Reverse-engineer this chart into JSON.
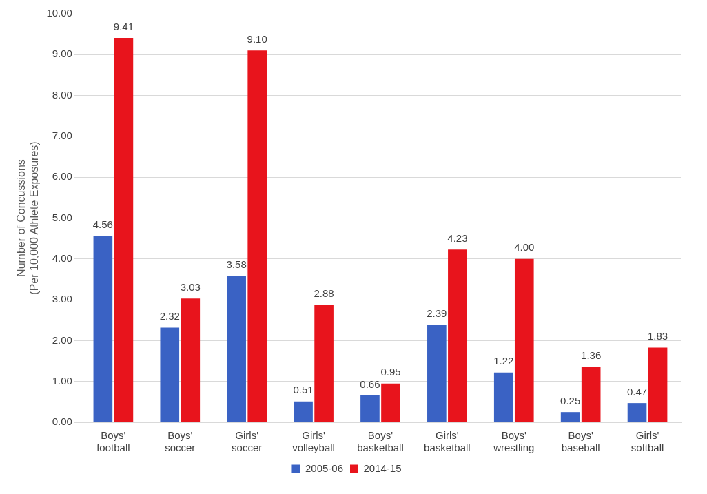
{
  "chart_data": {
    "type": "bar",
    "ylabel": "Number of Concussions\n(Per 10,000 Athlete Exposures)",
    "categories": [
      "Boys' football",
      "Boys' soccer",
      "Girls' soccer",
      "Girls' volleyball",
      "Boys' basketball",
      "Girls' basketball",
      "Boys' wrestling",
      "Boys' baseball",
      "Girls' softball"
    ],
    "series": [
      {
        "name": "2005-06",
        "color": "#3a62c4",
        "values": [
          4.56,
          2.32,
          3.58,
          0.51,
          0.66,
          2.39,
          1.22,
          0.25,
          0.47
        ],
        "value_labels": [
          "4.56",
          "2.32",
          "3.58",
          "0.51",
          "0.66",
          "2.39",
          "1.22",
          "0.25",
          "0.47"
        ]
      },
      {
        "name": "2014-15",
        "color": "#e8141c",
        "values": [
          9.41,
          3.03,
          9.1,
          2.88,
          0.95,
          4.23,
          4,
          1.36,
          1.83
        ],
        "value_labels": [
          "9.41",
          "3.03",
          "9.10",
          "2.88",
          "0.95",
          "4.23",
          "4.00",
          "1.36",
          "1.83"
        ]
      }
    ],
    "ylim": [
      0,
      10
    ],
    "yticks": [
      {
        "value": 0,
        "label": "0.00"
      },
      {
        "value": 1,
        "label": "1.00"
      },
      {
        "value": 2,
        "label": "2.00"
      },
      {
        "value": 3,
        "label": "3.00"
      },
      {
        "value": 4,
        "label": "4.00"
      },
      {
        "value": 5,
        "label": "5.00"
      },
      {
        "value": 6,
        "label": "6.00"
      },
      {
        "value": 7,
        "label": "7.00"
      },
      {
        "value": 8,
        "label": "8.00"
      },
      {
        "value": 9,
        "label": "9.00"
      },
      {
        "value": 10,
        "label": "10.00"
      }
    ],
    "grid": "y",
    "legend": "bottom"
  }
}
